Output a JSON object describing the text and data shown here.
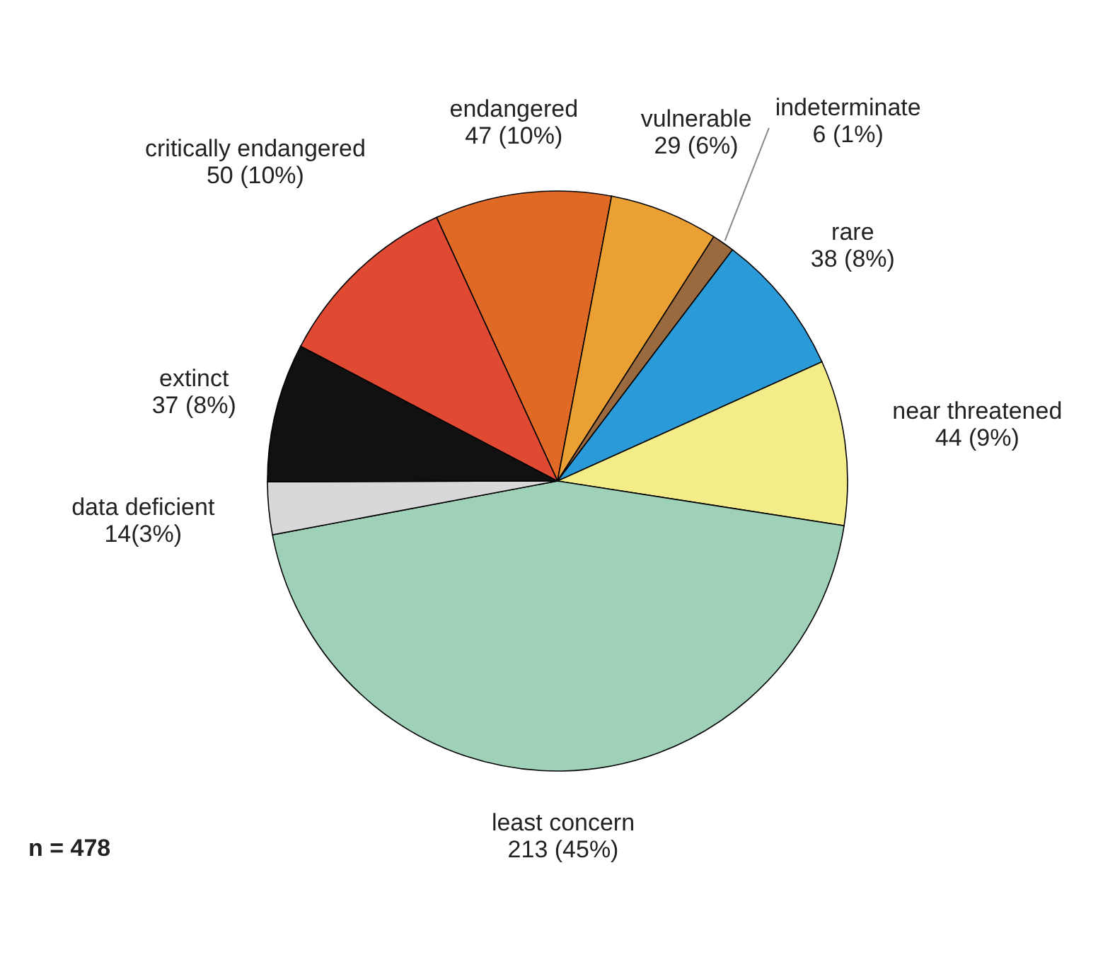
{
  "chart_data": {
    "type": "pie",
    "categories": [
      "endangered",
      "vulnerable",
      "indeterminate",
      "rare",
      "near threatened",
      "least concern",
      "data deficient",
      "extinct",
      "critically endangered"
    ],
    "values": [
      47,
      29,
      6,
      38,
      44,
      213,
      14,
      37,
      50
    ],
    "value_labels": [
      "47 (10%)",
      "29 (6%)",
      "6 (1%)",
      "38 (8%)",
      "44 (9%)",
      "213 (45%)",
      "14(3%)",
      "37 (8%)",
      "50 (10%)"
    ],
    "colors": [
      "#e06a25",
      "#eaa033",
      "#9a6a3e",
      "#2a9ad8",
      "#f4ec88",
      "#9fd0b8",
      "#d8d8da",
      "#111111",
      "#e04a33"
    ],
    "annotations": [
      "n = 478"
    ]
  }
}
